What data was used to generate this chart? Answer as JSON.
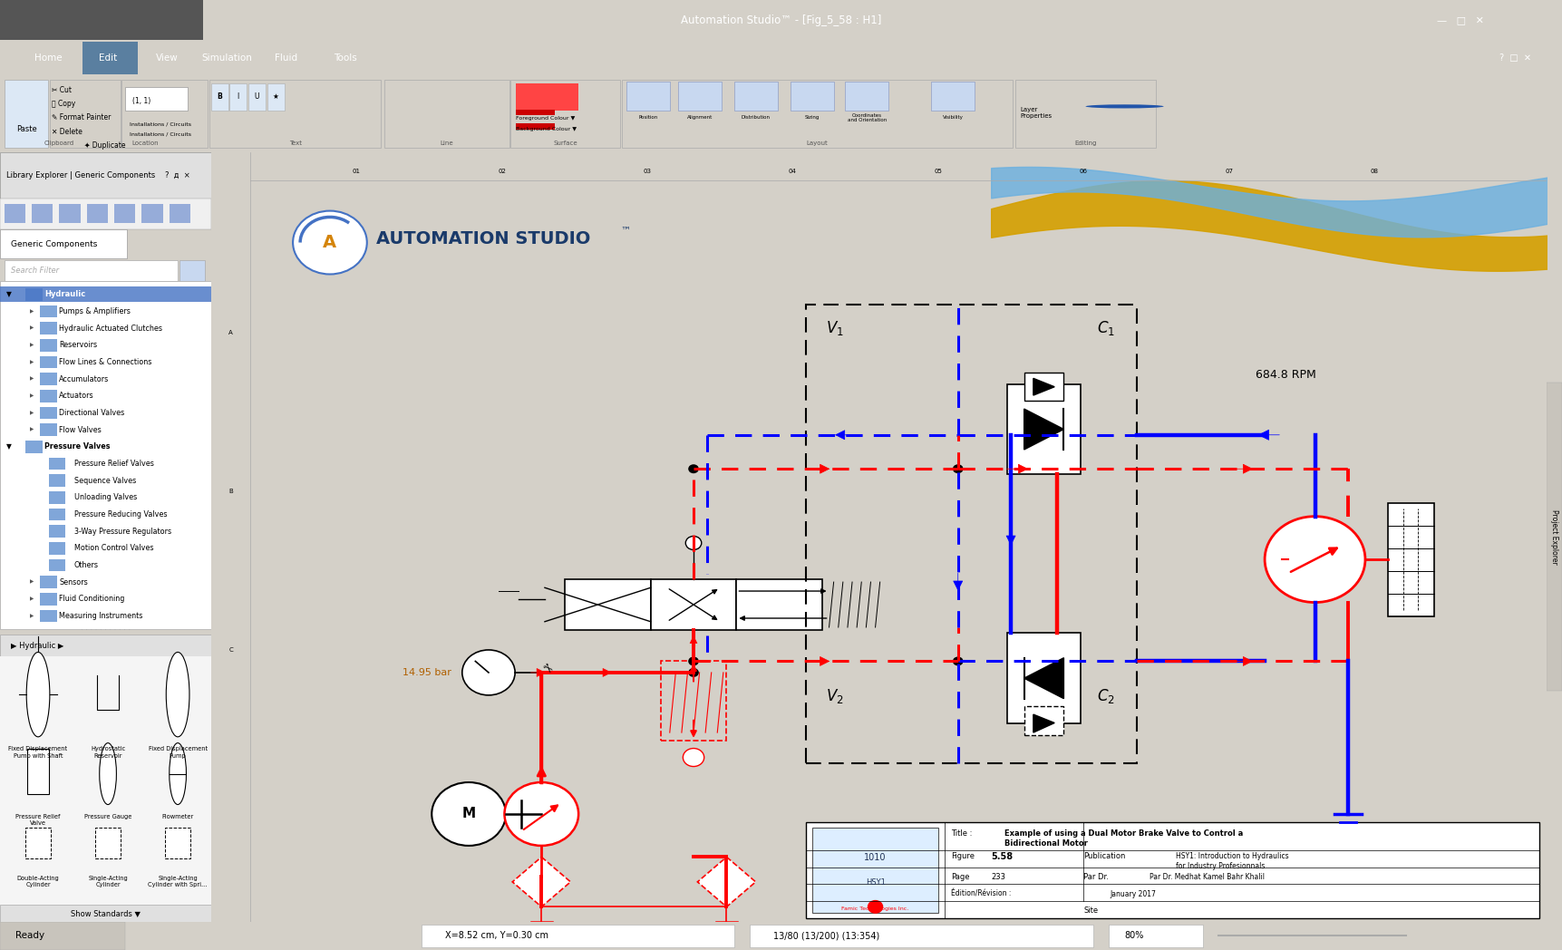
{
  "title": "Automation Studio™ - [Fig_5_58 : H1]",
  "titlebar_bg": "#3c3c3c",
  "titlebar_fg": "#ffffff",
  "menubar_bg": "#4a4a4a",
  "menubar_fg": "#ffffff",
  "toolbar_bg": "#d4d0c8",
  "ribbon_bg": "#e8e8e8",
  "canvas_bg": "#ffffff",
  "panel_bg": "#f0f0f0",
  "left_panel_bg": "#f5f5f5",
  "status_bg": "#d4d0c8",
  "red": "#ff0000",
  "dark_red": "#cc0000",
  "blue": "#0000ff",
  "dark_blue": "#0000cc",
  "orange": "#ff8c00",
  "gold": "#d4a000",
  "black": "#000000",
  "gray": "#808080",
  "light_gray": "#cccccc",
  "highlight_blue": "#4472c4",
  "pressure_bar": "14.95 bar",
  "rpm_label": "684.8 RPM",
  "v1_label": "V",
  "v2_label": "V",
  "c1_label": "C",
  "c2_label": "C",
  "figure_num": "5.58",
  "page_num": "233",
  "title_text": "Example of using a Dual Motor Brake Valve to Control a\nBidirectional Motor",
  "publication": "HSY1: Introduction to Hydraulics\nfor Industry Profesionnals",
  "author": "Par Dr. Medhat Kamel Bahr Khalil",
  "edition": "January 2017",
  "menu_items": [
    "Home",
    "Edit",
    "View",
    "Simulation",
    "Fluid",
    "Tools"
  ],
  "tree_items": [
    [
      0,
      true,
      "Hydraulic",
      "#000080"
    ],
    [
      1,
      false,
      "Pumps & Amplifiers",
      "#000000"
    ],
    [
      1,
      false,
      "Hydraulic Actuated Clutches",
      "#000000"
    ],
    [
      1,
      false,
      "Reservoirs",
      "#000000"
    ],
    [
      1,
      false,
      "Flow Lines & Connections",
      "#000000"
    ],
    [
      1,
      false,
      "Accumulators",
      "#000000"
    ],
    [
      1,
      false,
      "Actuators",
      "#000000"
    ],
    [
      1,
      false,
      "Directional Valves",
      "#000000"
    ],
    [
      1,
      false,
      "Flow Valves",
      "#000000"
    ],
    [
      0,
      true,
      "Pressure Valves",
      "#000000"
    ],
    [
      2,
      false,
      "Pressure Relief Valves",
      "#000000"
    ],
    [
      2,
      false,
      "Sequence Valves",
      "#000000"
    ],
    [
      2,
      false,
      "Unloading Valves",
      "#000000"
    ],
    [
      2,
      false,
      "Pressure Reducing Valves",
      "#000000"
    ],
    [
      2,
      false,
      "3-Way Pressure Regulators",
      "#000000"
    ],
    [
      2,
      false,
      "Motion Control Valves",
      "#000000"
    ],
    [
      2,
      false,
      "Others",
      "#000000"
    ],
    [
      1,
      false,
      "Sensors",
      "#000000"
    ],
    [
      1,
      false,
      "Fluid Conditioning",
      "#000000"
    ],
    [
      1,
      false,
      "Measuring Instruments",
      "#000000"
    ]
  ],
  "component_rows": [
    [
      "Fixed Displacement\nPump with Shaft",
      "Hydrostatic\nReservoir",
      "Fixed Displacement\nPump"
    ],
    [
      "Pressure Relief\nValve",
      "Pressure Gauge",
      "Flowmeter"
    ],
    [
      "Double-Acting\nCylinder",
      "Single-Acting\nCylinder",
      "Single-Acting\nCylinder with Spri..."
    ]
  ]
}
